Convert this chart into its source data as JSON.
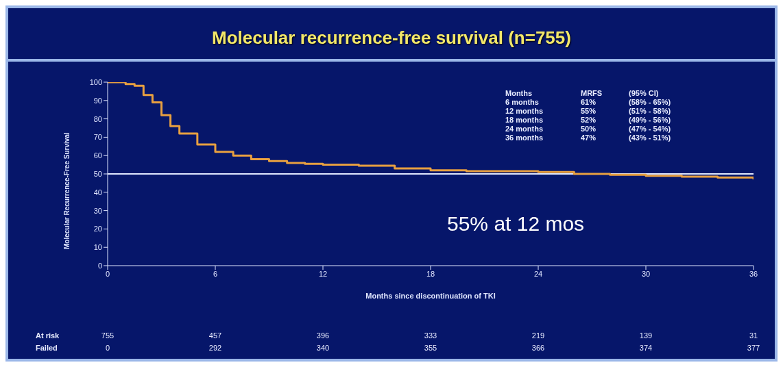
{
  "chart_data": {
    "type": "step",
    "title": "Molecular recurrence-free survival (n=755)",
    "xlabel": "Months since discontinuation of TKI",
    "ylabel": "Molecular Recurrence-Free Survival",
    "x": [
      0,
      0.5,
      1,
      1.5,
      2,
      2.5,
      3,
      3.5,
      4,
      5,
      6,
      7,
      8,
      9,
      10,
      11,
      12,
      14,
      16,
      18,
      20,
      22,
      24,
      26,
      28,
      30,
      32,
      34,
      36
    ],
    "series": [
      {
        "color": "#e8a040",
        "values": [
          100,
          100,
          99,
          98,
          93,
          89,
          82,
          76,
          72,
          66,
          62,
          60,
          58,
          57,
          56,
          55.5,
          55,
          54.5,
          53,
          52,
          51.5,
          51.5,
          51,
          50,
          49.5,
          49,
          48.5,
          48,
          47
        ]
      }
    ],
    "xlim": [
      0,
      36
    ],
    "xticks": [
      0,
      6,
      12,
      18,
      24,
      30,
      36
    ],
    "ylim": [
      0,
      100
    ],
    "yticks": [
      0,
      10,
      20,
      30,
      40,
      50,
      60,
      70,
      80,
      90,
      100
    ],
    "grid": false,
    "ref_lines": [
      {
        "axis": "y",
        "value": 50,
        "color": "#e0e8ff"
      }
    ],
    "annotations": [
      "55% at 12 mos",
      "Months",
      "MRFS",
      "(95% CI)",
      "6 months",
      "61%",
      "(58% - 65%)",
      "12 months",
      "55%",
      "(51% - 58%)",
      "18 months",
      "52%",
      "(49% - 56%)",
      "24 months",
      "50%",
      "(47% - 54%)",
      "36 months",
      "47%",
      "(43% - 51%)",
      "At risk",
      "755",
      "457",
      "396",
      "333",
      "219",
      "139",
      "31",
      "Failed",
      "0",
      "292",
      "340",
      "355",
      "366",
      "374",
      "377"
    ]
  }
}
